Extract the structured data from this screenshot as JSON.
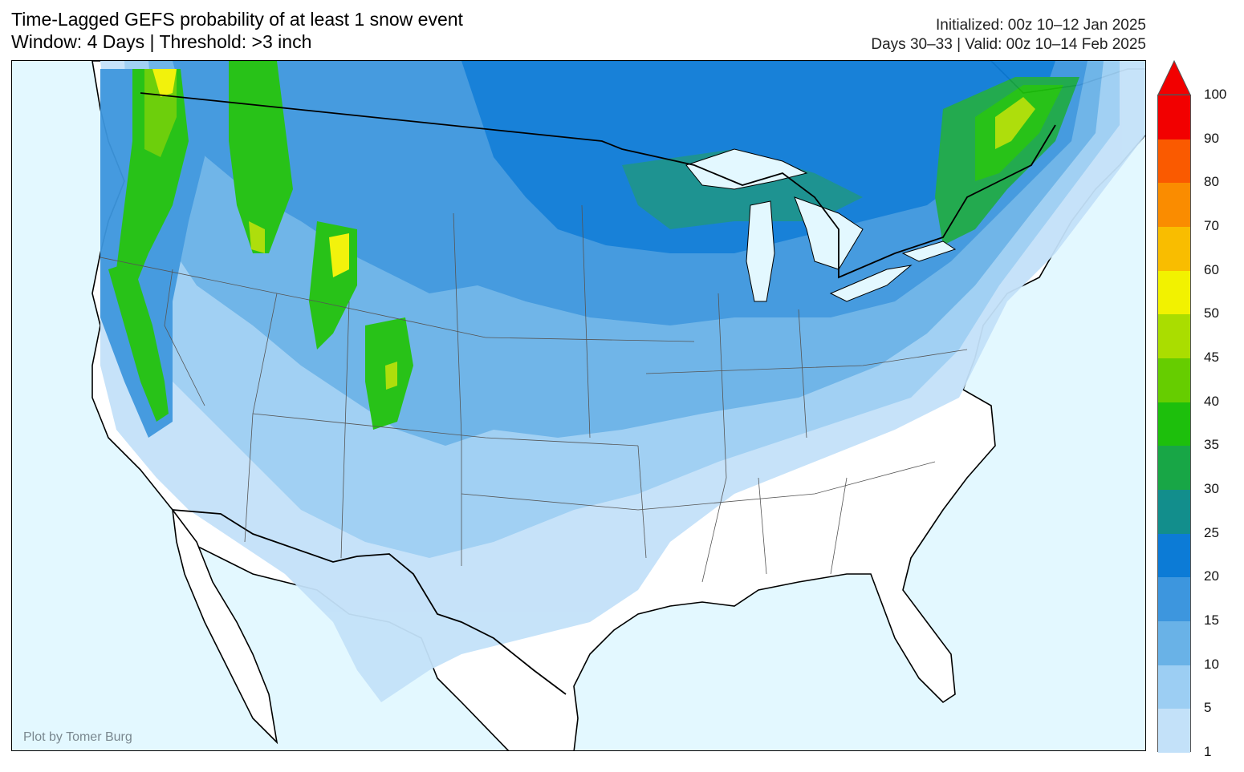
{
  "title": {
    "line1": "Time-Lagged GEFS probability of at least 1 snow event",
    "line2": "Window: 4 Days | Threshold: >3 inch"
  },
  "info": {
    "line1": "Initialized: 00z 10–12 Jan 2025",
    "line2": "Days 30–33 | Valid: 00z 10–14 Feb 2025"
  },
  "credit": "Plot by Tomer Burg",
  "colorbar": {
    "levels": [
      "1",
      "5",
      "10",
      "15",
      "20",
      "25",
      "30",
      "35",
      "40",
      "45",
      "50",
      "60",
      "70",
      "80",
      "90",
      "100"
    ],
    "colors": [
      "#c3e1f9",
      "#9ccef3",
      "#69b2e7",
      "#3d96de",
      "#0c7bd6",
      "#128e8c",
      "#18a646",
      "#1dbf0c",
      "#66cd00",
      "#aadd00",
      "#f2f200",
      "#f9bd00",
      "#fa8c00",
      "#fa5a00",
      "#f20000"
    ],
    "arrow_color": "#f20000"
  },
  "map_colors": {
    "ocean": "#e3f8ff",
    "land": "#ffffff",
    "lakes": "#e3f8ff"
  }
}
